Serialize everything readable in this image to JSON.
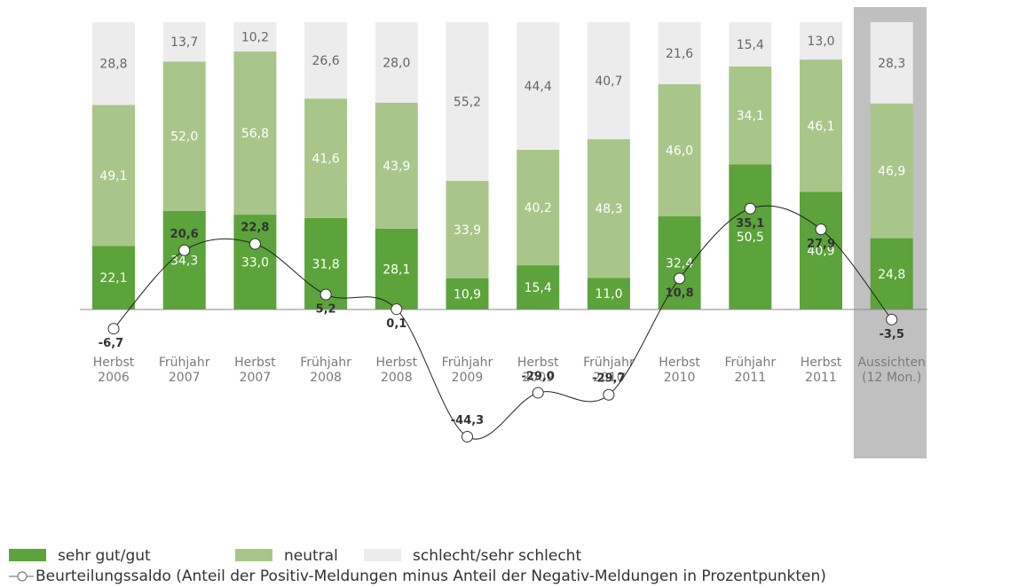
{
  "chart_data": {
    "type": "stacked-bar-line",
    "categories": [
      [
        "Herbst",
        "2006"
      ],
      [
        "Frühjahr",
        "2007"
      ],
      [
        "Herbst",
        "2007"
      ],
      [
        "Frühjahr",
        "2008"
      ],
      [
        "Herbst",
        "2008"
      ],
      [
        "Frühjahr",
        "2009"
      ],
      [
        "Herbst",
        "2009"
      ],
      [
        "Frühjahr",
        "2010"
      ],
      [
        "Herbst",
        "2010"
      ],
      [
        "Frühjahr",
        "2011"
      ],
      [
        "Herbst",
        "2011"
      ],
      [
        "Aussichten",
        "(12 Mon.)"
      ]
    ],
    "series": [
      {
        "name": "sehr gut/gut",
        "color": "#5ba33a",
        "values": [
          22.1,
          34.3,
          33.0,
          31.8,
          28.1,
          10.9,
          15.4,
          11.0,
          32.4,
          50.5,
          40.9,
          24.8
        ],
        "value_labels": [
          "22,1",
          "34,3",
          "33,0",
          "31,8",
          "28,1",
          "10,9",
          "15,4",
          "11,0",
          "32,4",
          "50,5",
          "40,9",
          "24,8"
        ]
      },
      {
        "name": "neutral",
        "color": "#a8c68a",
        "values": [
          49.1,
          52.0,
          56.8,
          41.6,
          43.9,
          33.9,
          40.2,
          48.3,
          46.0,
          34.1,
          46.1,
          46.9
        ],
        "value_labels": [
          "49,1",
          "52,0",
          "56,8",
          "41,6",
          "43,9",
          "33,9",
          "40,2",
          "48,3",
          "46,0",
          "34,1",
          "46,1",
          "46,9"
        ]
      },
      {
        "name": "schlecht/sehr schlecht",
        "color": "#ececec",
        "values": [
          28.8,
          13.7,
          10.2,
          26.6,
          28.0,
          55.2,
          44.4,
          40.7,
          21.6,
          15.4,
          13.0,
          28.3
        ],
        "value_labels": [
          "28,8",
          "13,7",
          "10,2",
          "26,6",
          "28,0",
          "55,2",
          "44,4",
          "40,7",
          "21,6",
          "15,4",
          "13,0",
          "28,3"
        ]
      },
      {
        "name": "Beurteilungssaldo (Anteil der Positiv-Meldungen minus Anteil der Negativ-Meldungen in Prozentpunkten)",
        "type": "line",
        "color": "#222222",
        "values": [
          -6.7,
          20.6,
          22.8,
          5.2,
          0.1,
          -44.3,
          -29.0,
          -29.7,
          10.8,
          35.1,
          27.9,
          -3.5
        ],
        "value_labels": [
          "-6,7",
          "20,6",
          "22,8",
          "5,2",
          "0,1",
          "-44,3",
          "-29,0",
          "-29,7",
          "10,8",
          "35,1",
          "27,9",
          "-3,5"
        ]
      }
    ]
  }
}
